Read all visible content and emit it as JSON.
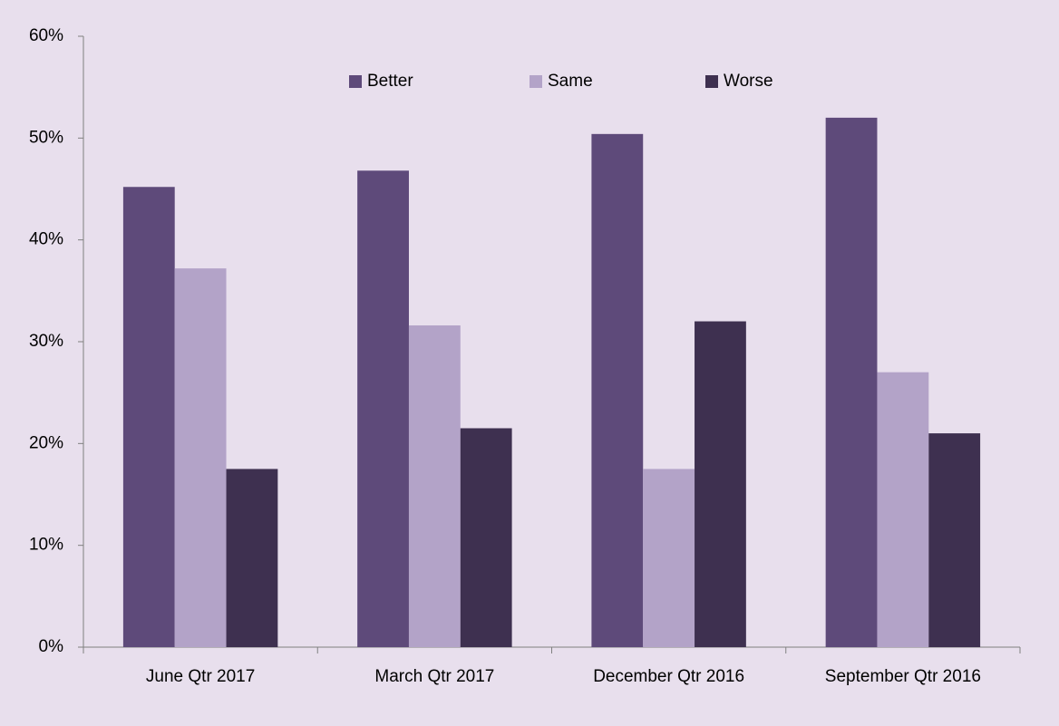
{
  "chart_data": {
    "type": "bar",
    "categories": [
      "June Qtr 2017",
      "March Qtr 2017",
      "December Qtr 2016",
      "September Qtr 2016"
    ],
    "series": [
      {
        "name": "Better",
        "color": "#5e4a7a",
        "values": [
          45.2,
          46.8,
          50.4,
          52
        ]
      },
      {
        "name": "Same",
        "color": "#b3a3c8",
        "values": [
          37.2,
          31.6,
          17.5,
          27
        ]
      },
      {
        "name": "Worse",
        "color": "#3e3050",
        "values": [
          17.5,
          21.5,
          32,
          21
        ]
      }
    ],
    "ylim": [
      0,
      60
    ],
    "yticks": [
      {
        "value": 0,
        "label": "0%"
      },
      {
        "value": 10,
        "label": "10%"
      },
      {
        "value": 20,
        "label": "20%"
      },
      {
        "value": 30,
        "label": "30%"
      },
      {
        "value": 40,
        "label": "40%"
      },
      {
        "value": 50,
        "label": "50%"
      },
      {
        "value": 60,
        "label": "60%"
      }
    ],
    "grid": false,
    "legend": "top"
  }
}
